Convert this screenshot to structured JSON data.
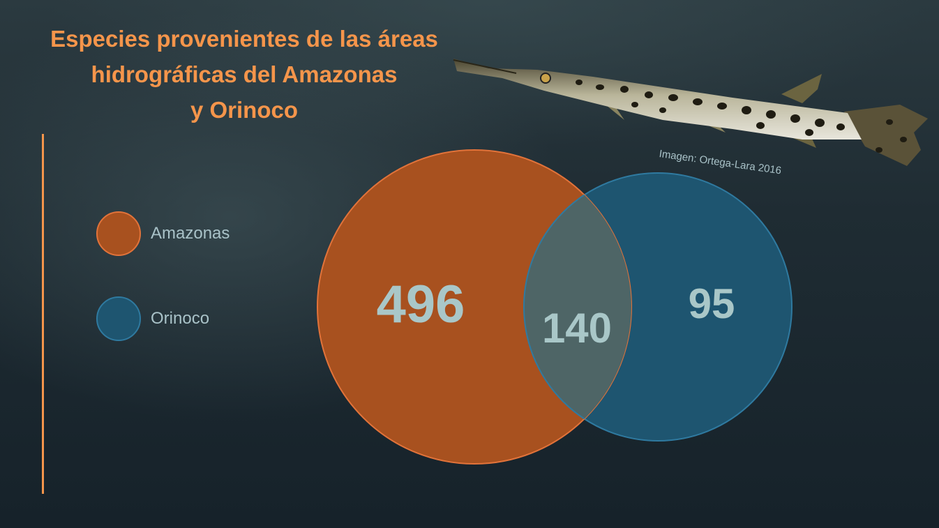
{
  "title": {
    "line1": "Especies provenientes de las áreas",
    "line2": "hidrográficas del Amazonas",
    "line3": "y Orinoco"
  },
  "legend": [
    {
      "label": "Amazonas",
      "color": "#a8511f"
    },
    {
      "label": "Orinoco",
      "color": "#1e5570"
    }
  ],
  "venn": {
    "amazonas_only": "496",
    "intersection": "140",
    "orinoco_only": "95",
    "colors": {
      "amazonas": "#a8511f",
      "orinoco": "#1e5570",
      "overlap": "#4e6566",
      "number": "#a9c7c8"
    }
  },
  "image_credit": "Imagen: Ortega-Lara 2016",
  "image_subject": "spotted-gar-fish"
}
